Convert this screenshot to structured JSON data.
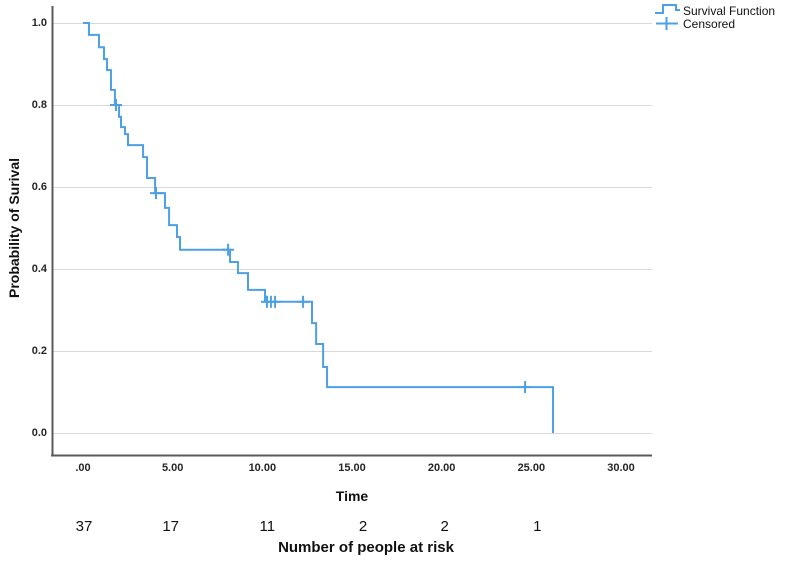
{
  "chart_data": {
    "type": "line",
    "chart_style": "kaplan-meier-step",
    "title": "",
    "xlabel": "Time",
    "ylabel": "Probability of Surival",
    "xlim": [
      0,
      30
    ],
    "ylim": [
      0.0,
      1.0
    ],
    "grid": "horizontal",
    "x_ticks": {
      "values": [
        0,
        5,
        10,
        15,
        20,
        25,
        30
      ],
      "labels": [
        ".00",
        "5.00",
        "10.00",
        "15.00",
        "20.00",
        "25.00",
        "30.00"
      ]
    },
    "y_ticks": {
      "values": [
        0.0,
        0.2,
        0.4,
        0.6,
        0.8,
        1.0
      ],
      "labels": [
        "0.0",
        "0.2",
        "0.4",
        "0.6",
        "0.8",
        "1.0"
      ]
    },
    "legend": {
      "position": "top-right",
      "items": [
        {
          "label": "Survival Function",
          "marker": "step-line"
        },
        {
          "label": "Censored",
          "marker": "plus"
        }
      ]
    },
    "series": [
      {
        "name": "Survival Function",
        "type": "step",
        "color": "#4EA0E4",
        "points": [
          [
            0.0,
            1.0
          ],
          [
            0.33,
            0.971
          ],
          [
            0.89,
            0.941
          ],
          [
            1.17,
            0.912
          ],
          [
            1.34,
            0.885
          ],
          [
            1.56,
            0.837
          ],
          [
            1.78,
            0.8
          ],
          [
            2.01,
            0.771
          ],
          [
            2.12,
            0.746
          ],
          [
            2.34,
            0.729
          ],
          [
            2.51,
            0.702
          ],
          [
            3.35,
            0.673
          ],
          [
            3.57,
            0.622
          ],
          [
            4.02,
            0.585
          ],
          [
            4.57,
            0.549
          ],
          [
            4.8,
            0.507
          ],
          [
            5.24,
            0.478
          ],
          [
            5.41,
            0.447
          ],
          [
            8.2,
            0.417
          ],
          [
            8.64,
            0.39
          ],
          [
            9.2,
            0.349
          ],
          [
            10.15,
            0.32
          ],
          [
            12.77,
            0.268
          ],
          [
            13.0,
            0.217
          ],
          [
            13.39,
            0.161
          ],
          [
            13.61,
            0.112
          ],
          [
            26.21,
            0.0
          ]
        ]
      },
      {
        "name": "Censored",
        "type": "plus-marker",
        "color": "#4EA0E4",
        "points": [
          [
            1.84,
            0.8
          ],
          [
            4.07,
            0.585
          ],
          [
            8.09,
            0.447
          ],
          [
            10.26,
            0.32
          ],
          [
            10.48,
            0.32
          ],
          [
            10.71,
            0.32
          ],
          [
            12.27,
            0.32
          ],
          [
            24.65,
            0.112
          ]
        ]
      }
    ],
    "risk_table": {
      "title": "Number of people at risk",
      "times": [
        0,
        5,
        10,
        15,
        20,
        25
      ],
      "counts": [
        37,
        17,
        11,
        2,
        2,
        1
      ]
    }
  },
  "colors": {
    "curve": "#4EA0E4",
    "grid": "#D9D9D9",
    "axis": "#5A5A5A",
    "text": "#1A1A1A",
    "background": "#FFFFFF"
  }
}
